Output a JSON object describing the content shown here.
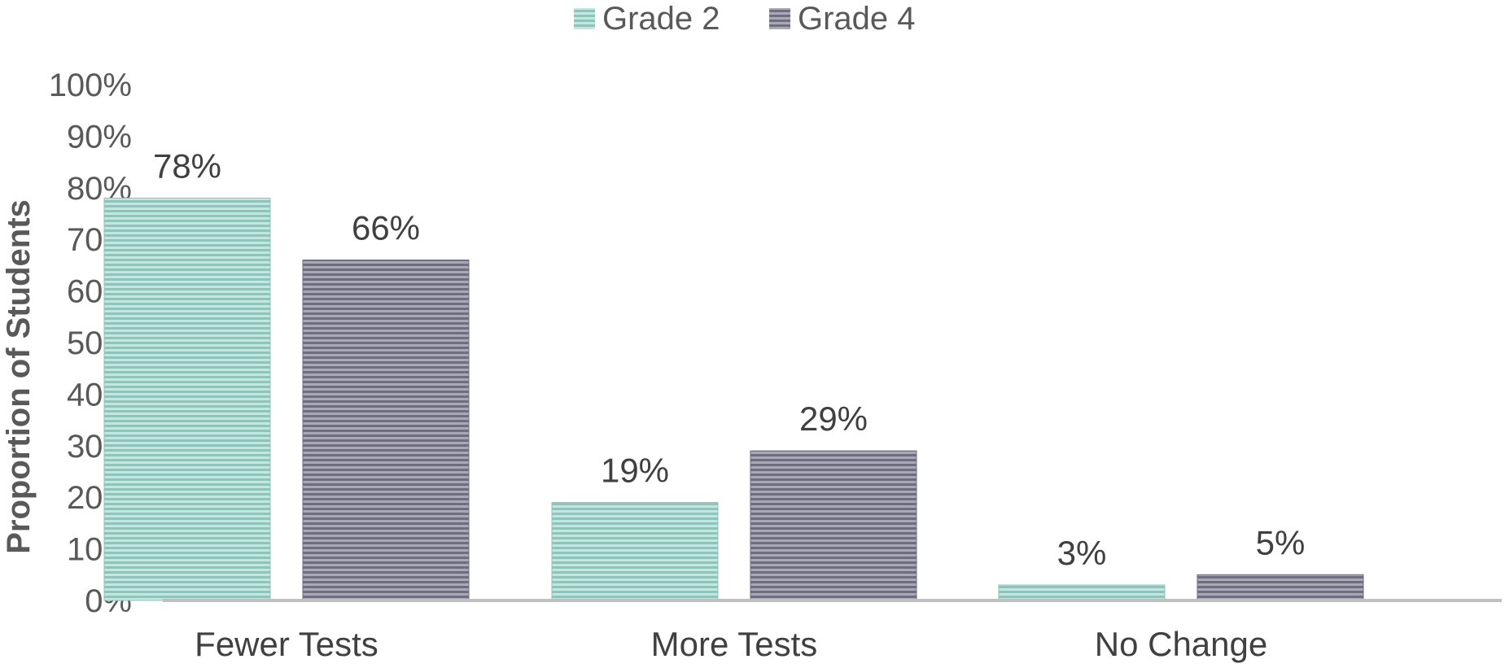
{
  "chart_data": {
    "type": "bar",
    "categories": [
      "Fewer Tests",
      "More Tests",
      "No Change"
    ],
    "series": [
      {
        "name": "Grade 2",
        "values": [
          78,
          19,
          3
        ],
        "labels": [
          "78%",
          "19%",
          "3%"
        ],
        "color": "#8fc4bb"
      },
      {
        "name": "Grade 4",
        "values": [
          66,
          29,
          5
        ],
        "labels": [
          "66%",
          "29%",
          "5%"
        ],
        "color": "#6e6e80"
      }
    ],
    "ylabel": "Proportion of Students",
    "xlabel": "",
    "ylim": [
      0,
      100
    ],
    "yticks": [
      "0%",
      "10%",
      "20%",
      "30%",
      "40%",
      "50%",
      "60%",
      "70%",
      "80%",
      "90%",
      "100%"
    ],
    "legend": "top-center",
    "grid": false
  }
}
